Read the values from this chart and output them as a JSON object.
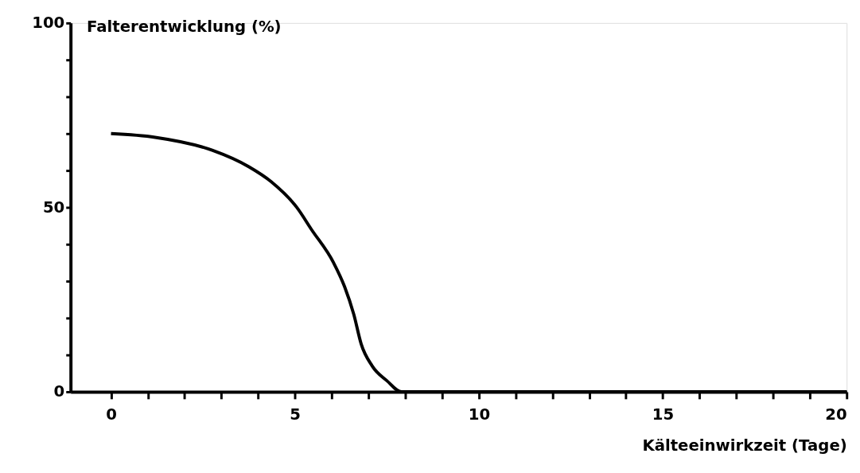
{
  "chart_data": {
    "type": "line",
    "xlabel": "Kälteeinwirkzeit (Tage)",
    "ylabel": "Falterentwicklung (%)",
    "series": [
      {
        "color": "#000000",
        "x": [
          0,
          1.2,
          2.75,
          3.75,
          4.35,
          5.05,
          5.45,
          6.05,
          6.35,
          6.6,
          6.8,
          7.1,
          7.5,
          7.9,
          10,
          15,
          20
        ],
        "values": [
          70,
          69,
          65.5,
          61,
          57,
          50,
          44,
          35,
          28.5,
          21,
          13,
          7,
          3,
          0,
          0,
          0,
          0
        ]
      }
    ],
    "xlim": [
      -1.1,
      20
    ],
    "ylim": [
      0,
      100
    ],
    "xticks": [
      0,
      {
        "value": 1,
        "label": null
      },
      {
        "value": 2,
        "label": null
      },
      {
        "value": 3,
        "label": null
      },
      {
        "value": 4,
        "label": null
      },
      5,
      {
        "value": 6,
        "label": null
      },
      {
        "value": 7,
        "label": null
      },
      {
        "value": 8,
        "label": null
      },
      {
        "value": 9,
        "label": null
      },
      10,
      {
        "value": 11,
        "label": null
      },
      {
        "value": 12,
        "label": null
      },
      {
        "value": 13,
        "label": null
      },
      {
        "value": 14,
        "label": null
      },
      15,
      {
        "value": 16,
        "label": null
      },
      {
        "value": 17,
        "label": null
      },
      {
        "value": 18,
        "label": null
      },
      {
        "value": 19,
        "label": null
      },
      20
    ],
    "yticks": [
      0,
      {
        "value": 10,
        "label": null
      },
      {
        "value": 20,
        "label": null
      },
      {
        "value": 30,
        "label": null
      },
      {
        "value": 40,
        "label": null
      },
      50,
      {
        "value": 60,
        "label": null
      },
      {
        "value": 70,
        "label": null
      },
      {
        "value": 80,
        "label": null
      },
      {
        "value": 90,
        "label": null
      },
      100
    ],
    "grid": false,
    "marker": "none",
    "line_style": "solid"
  }
}
